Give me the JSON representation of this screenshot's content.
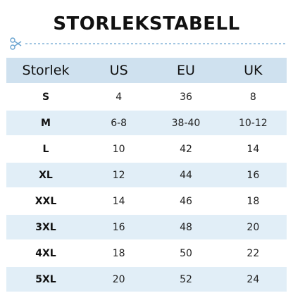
{
  "title": "STORLEKSTABELL",
  "colors": {
    "header_bg": "#cfe1ef",
    "alt_row_bg": "#e1eef7",
    "cut_line": "#6aa4d0"
  },
  "icons": {
    "cut_line": "scissors-icon"
  },
  "table": {
    "headers": [
      "Storlek",
      "US",
      "EU",
      "UK"
    ],
    "rows": [
      {
        "size": "S",
        "us": "4",
        "eu": "36",
        "uk": "8"
      },
      {
        "size": "M",
        "us": "6-8",
        "eu": "38-40",
        "uk": "10-12"
      },
      {
        "size": "L",
        "us": "10",
        "eu": "42",
        "uk": "14"
      },
      {
        "size": "XL",
        "us": "12",
        "eu": "44",
        "uk": "16"
      },
      {
        "size": "XXL",
        "us": "14",
        "eu": "46",
        "uk": "18"
      },
      {
        "size": "3XL",
        "us": "16",
        "eu": "48",
        "uk": "20"
      },
      {
        "size": "4XL",
        "us": "18",
        "eu": "50",
        "uk": "22"
      },
      {
        "size": "5XL",
        "us": "20",
        "eu": "52",
        "uk": "24"
      }
    ]
  }
}
